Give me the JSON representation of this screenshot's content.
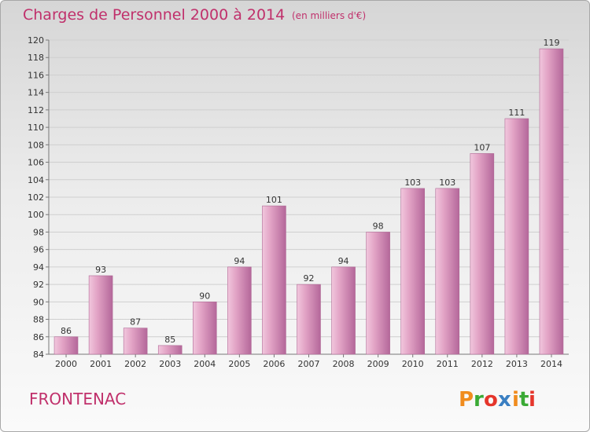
{
  "chart_data": {
    "type": "bar",
    "title": "Charges de Personnel 2000 à 2014",
    "subtitle": "(en milliers d'€)",
    "categories": [
      "2000",
      "2001",
      "2002",
      "2003",
      "2004",
      "2005",
      "2006",
      "2007",
      "2008",
      "2009",
      "2010",
      "2011",
      "2012",
      "2013",
      "2014"
    ],
    "values": [
      86,
      93,
      87,
      85,
      90,
      94,
      101,
      92,
      94,
      98,
      103,
      103,
      107,
      111,
      119
    ],
    "ylim": [
      84,
      120
    ],
    "yticks": [
      84,
      86,
      88,
      90,
      92,
      94,
      96,
      98,
      100,
      102,
      104,
      106,
      108,
      110,
      112,
      114,
      116,
      118,
      120
    ],
    "grid": true,
    "bar_color": "#c87aa6"
  },
  "footer": {
    "commune": "FRONTENAC",
    "logo_letters": [
      "P",
      "r",
      "o",
      "x",
      "i",
      "t",
      "i"
    ],
    "logo_colors": [
      "#f08c1e",
      "#3aaa35",
      "#e5352b",
      "#3a7fc2",
      "#f08c1e",
      "#3aaa35",
      "#e5352b"
    ]
  },
  "colors": {
    "accent": "#c0306b",
    "grid": "#cfcfcf",
    "axis": "#777777"
  }
}
